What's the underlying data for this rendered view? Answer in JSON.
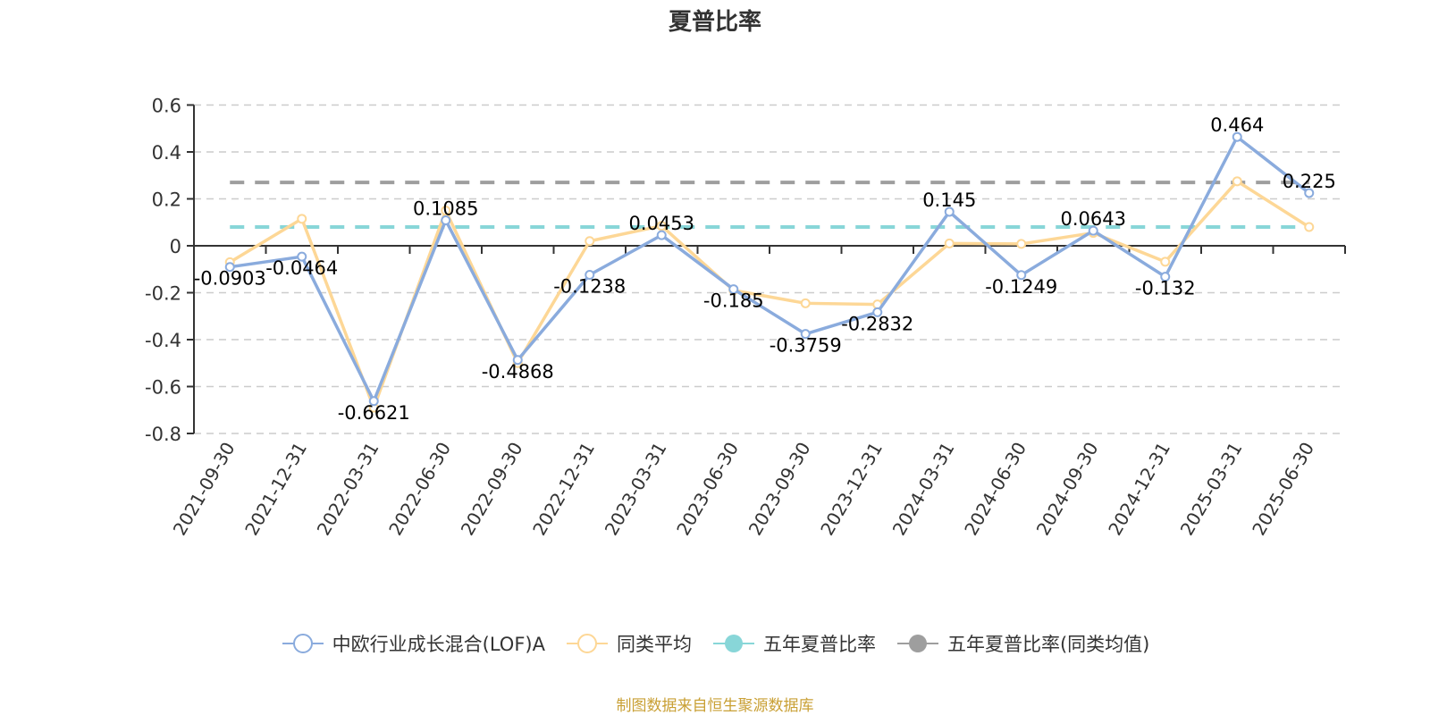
{
  "title": "夏普比率",
  "source_note": "制图数据来自恒生聚源数据库",
  "legend": [
    {
      "label": "中欧行业成长混合(LOF)A",
      "color": "#8aabdd",
      "marker": "hollow-circle"
    },
    {
      "label": "同类平均",
      "color": "#fdd796",
      "marker": "hollow-circle"
    },
    {
      "label": "五年夏普比率",
      "color": "#88d6d8",
      "marker": "filled-circle"
    },
    {
      "label": "五年夏普比率(同类均值)",
      "color": "#9e9e9e",
      "marker": "filled-circle"
    }
  ],
  "chart_data": {
    "type": "line",
    "title": "夏普比率",
    "xlabel": "",
    "ylabel": "",
    "ylim": [
      -0.8,
      0.6
    ],
    "yticks": [
      0.6,
      0.4,
      0.2,
      0,
      -0.2,
      -0.4,
      -0.6,
      -0.8
    ],
    "grid": "horizontal dashed",
    "legend_position": "bottom",
    "categories": [
      "2021-09-30",
      "2021-12-31",
      "2022-03-31",
      "2022-06-30",
      "2022-09-30",
      "2022-12-31",
      "2023-03-31",
      "2023-06-30",
      "2023-09-30",
      "2023-12-31",
      "2024-03-31",
      "2024-06-30",
      "2024-09-30",
      "2024-12-31",
      "2025-03-31",
      "2025-06-30"
    ],
    "series": [
      {
        "name": "中欧行业成长混合(LOF)A",
        "color": "#8aabdd",
        "labeled": true,
        "values": [
          -0.0903,
          -0.0464,
          -0.6621,
          0.1085,
          -0.4868,
          -0.1238,
          0.0453,
          -0.185,
          -0.3759,
          -0.2832,
          0.145,
          -0.1249,
          0.0643,
          -0.132,
          0.464,
          0.225
        ]
      },
      {
        "name": "同类平均",
        "color": "#fdd796",
        "labeled": false,
        "values": [
          -0.07,
          0.115,
          -0.69,
          0.15,
          -0.5,
          0.02,
          0.085,
          -0.19,
          -0.245,
          -0.25,
          0.01,
          0.008,
          0.055,
          -0.068,
          0.275,
          0.08
        ]
      },
      {
        "name": "五年夏普比率",
        "color": "#88d6d8",
        "type": "reference-line",
        "value": 0.08
      },
      {
        "name": "五年夏普比率(同类均值)",
        "color": "#9e9e9e",
        "type": "reference-line",
        "value": 0.27
      }
    ]
  }
}
